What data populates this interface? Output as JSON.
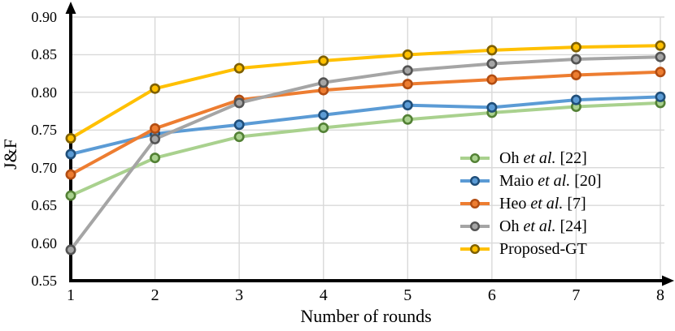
{
  "chart_data": {
    "type": "line",
    "title": "",
    "xlabel": "Number of rounds",
    "ylabel": "J&F",
    "x": [
      1,
      2,
      3,
      4,
      5,
      6,
      7,
      8
    ],
    "xtick_labels": [
      "1",
      "2",
      "3",
      "4",
      "5",
      "6",
      "7",
      "8"
    ],
    "ylim": [
      0.55,
      0.9
    ],
    "ytick_step": 0.05,
    "ytick_labels": [
      "0.55",
      "0.60",
      "0.65",
      "0.70",
      "0.75",
      "0.80",
      "0.85",
      "0.90"
    ],
    "grid": true,
    "grid_color": "#D9D9D9",
    "axis_color": "#000000",
    "legend_position": "inside-bottom-right",
    "series": [
      {
        "name": "Oh et al. [22]",
        "label_pre": "Oh ",
        "label_italic": "et al.",
        "label_post": " [22]",
        "color": "#A9D18E",
        "marker_stroke": "#538135",
        "values": [
          0.663,
          0.713,
          0.741,
          0.753,
          0.764,
          0.773,
          0.781,
          0.786
        ]
      },
      {
        "name": "Maio et al. [20]",
        "label_pre": "Maio ",
        "label_italic": "et al.",
        "label_post": " [20]",
        "color": "#5B9BD5",
        "marker_stroke": "#1F4E79",
        "values": [
          0.718,
          0.745,
          0.757,
          0.77,
          0.783,
          0.78,
          0.79,
          0.794
        ]
      },
      {
        "name": "Heo et al. [7]",
        "label_pre": "Heo ",
        "label_italic": "et al.",
        "label_post": " [7]",
        "color": "#ED7D31",
        "marker_stroke": "#B24D12",
        "values": [
          0.691,
          0.752,
          0.79,
          0.803,
          0.811,
          0.817,
          0.823,
          0.827
        ]
      },
      {
        "name": "Oh et al. [24]",
        "label_pre": "Oh ",
        "label_italic": "et al.",
        "label_post": " [24]",
        "color": "#A5A5A5",
        "marker_stroke": "#545454",
        "values": [
          0.591,
          0.738,
          0.786,
          0.813,
          0.829,
          0.838,
          0.844,
          0.847
        ]
      },
      {
        "name": "Proposed-GT",
        "label_pre": "Proposed-GT",
        "label_italic": "",
        "label_post": "",
        "color": "#FFC000",
        "marker_stroke": "#7F6000",
        "values": [
          0.739,
          0.805,
          0.832,
          0.842,
          0.85,
          0.856,
          0.86,
          0.862
        ]
      }
    ]
  }
}
